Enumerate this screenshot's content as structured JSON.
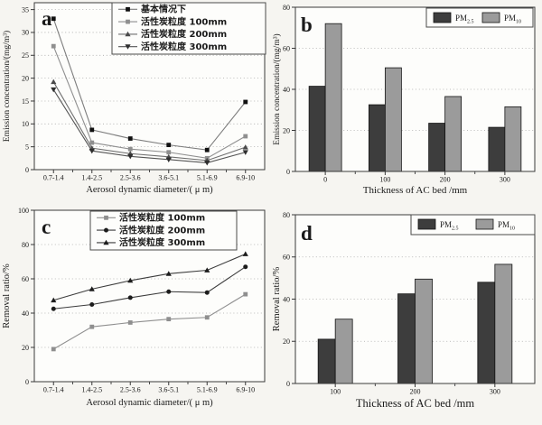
{
  "figure": {
    "background": "#f6f5f1",
    "palette": {
      "axis": "#3a3a3a",
      "grid": "#a8a8a8",
      "text": "#1a1a1a",
      "pm25_bar": "#3d3d3d",
      "pm10_bar": "#9b9b9b"
    }
  },
  "chart_data": [
    {
      "id": "a",
      "type": "line",
      "panel_label": "a",
      "xlabel": "Aerosol dynamic diameter/( μ m)",
      "ylabel": "Emission concentration/(mg/m³)",
      "categories": [
        "0.7-1.4",
        "1.4-2.5",
        "2.5-3.6",
        "3.6-5.1",
        "5.1-6.9",
        "6.9-10"
      ],
      "ylim": [
        0,
        35
      ],
      "ytick_step": 5,
      "y_top": 36.5,
      "grid": "dotted-horizontal",
      "legend_position": "top-right",
      "series": [
        {
          "name": "基本情况下",
          "marker": "square",
          "marker_color": "#101010",
          "line_color": "#7d7d7d",
          "values": [
            33,
            8.7,
            6.8,
            5.4,
            4.3,
            14.8
          ]
        },
        {
          "name": "活性炭粒度 100mm",
          "marker": "square",
          "marker_color": "#8f8f8f",
          "line_color": "#8f8f8f",
          "values": [
            27,
            5.9,
            4.5,
            3.8,
            2.5,
            7.3
          ]
        },
        {
          "name": "活性炭粒度 200mm",
          "marker": "triangle-up",
          "marker_color": "#4a4a4a",
          "line_color": "#6f6f6f",
          "values": [
            19.2,
            4.7,
            3.5,
            2.8,
            2.0,
            4.9
          ]
        },
        {
          "name": "活性炭粒度 300mm",
          "marker": "triangle-down",
          "marker_color": "#2e2e2e",
          "line_color": "#555555",
          "values": [
            17.5,
            4.1,
            2.9,
            2.2,
            1.5,
            3.8
          ]
        }
      ]
    },
    {
      "id": "b",
      "type": "bar",
      "panel_label": "b",
      "xlabel": "Thickness of AC bed /mm",
      "ylabel": "Emission concentration/(mg/m³)",
      "categories": [
        "0",
        "100",
        "200",
        "300"
      ],
      "ylim": [
        0,
        80
      ],
      "ytick_step": 20,
      "grid": "dotted-horizontal",
      "legend_position": "top-right",
      "series": [
        {
          "name": "PM2.5",
          "label_base": "PM",
          "label_sub": "2.5",
          "color": "#3d3d3d",
          "values": [
            41.5,
            32.5,
            23.5,
            21.5
          ]
        },
        {
          "name": "PM10",
          "label_base": "PM",
          "label_sub": "10",
          "color": "#9b9b9b",
          "values": [
            72,
            50.5,
            36.5,
            31.5
          ]
        }
      ]
    },
    {
      "id": "c",
      "type": "line",
      "panel_label": "c",
      "xlabel": "Aerosol dynamic diameter/( μ m)",
      "ylabel": "Removal ratio/%",
      "categories": [
        "0.7-1.4",
        "1.4-2.5",
        "2.5-3.6",
        "3.6-5.1",
        "5.1-6.9",
        "6.9-10"
      ],
      "ylim": [
        0,
        100
      ],
      "ytick_step": 20,
      "y_top": 100,
      "grid": "dotted-horizontal",
      "legend_position": "top-center",
      "series": [
        {
          "name": "活性炭粒度 100mm",
          "marker": "square",
          "marker_color": "#8f8f8f",
          "line_color": "#8f8f8f",
          "values": [
            19,
            32,
            34.5,
            36.5,
            37.5,
            51
          ]
        },
        {
          "name": "活性炭粒度 200mm",
          "marker": "circle",
          "marker_color": "#1c1c1c",
          "line_color": "#3c3c3c",
          "values": [
            42.5,
            45,
            49,
            52.5,
            52,
            67
          ]
        },
        {
          "name": "活性炭粒度 300mm",
          "marker": "triangle-up",
          "marker_color": "#1c1c1c",
          "line_color": "#3c3c3c",
          "values": [
            47.5,
            54,
            59,
            63,
            65,
            74.5
          ]
        }
      ]
    },
    {
      "id": "d",
      "type": "bar",
      "panel_label": "d",
      "xlabel": "Thickness of AC bed /mm",
      "ylabel": "Removal ratio/%",
      "categories": [
        "100",
        "200",
        "300"
      ],
      "ylim": [
        0,
        80
      ],
      "ytick_step": 20,
      "grid": "dotted-horizontal",
      "legend_position": "top-right",
      "series": [
        {
          "name": "PM2.5",
          "label_base": "PM",
          "label_sub": "2.5",
          "color": "#3d3d3d",
          "values": [
            21,
            42.5,
            48
          ]
        },
        {
          "name": "PM10",
          "label_base": "PM",
          "label_sub": "10",
          "color": "#9b9b9b",
          "values": [
            30.5,
            49.5,
            56.5
          ]
        }
      ]
    }
  ]
}
